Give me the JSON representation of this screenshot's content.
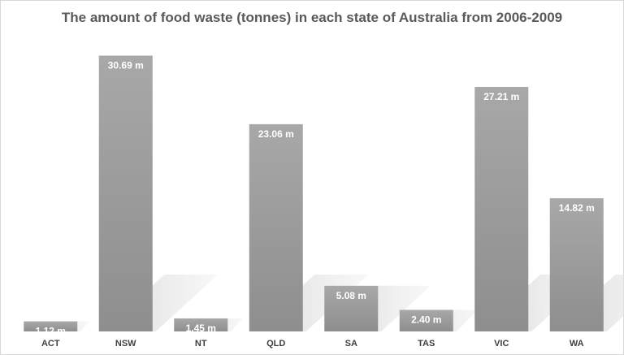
{
  "chart_data": {
    "type": "bar",
    "title": "The amount of food waste (tonnes) in each state of Australia from 2006-2009",
    "xlabel": "",
    "ylabel": "",
    "categories": [
      "ACT",
      "NSW",
      "NT",
      "QLD",
      "SA",
      "TAS",
      "VIC",
      "WA"
    ],
    "values": [
      1.12,
      30.69,
      1.45,
      23.06,
      5.08,
      2.4,
      27.21,
      14.82
    ],
    "data_labels": [
      "1.12 m",
      "30.69 m",
      "1.45 m",
      "23.06 m",
      "5.08 m",
      "2.40 m",
      "27.21 m",
      "14.82 m"
    ],
    "ylim": [
      0,
      32
    ],
    "grid": false,
    "legend": "none",
    "colors": {
      "bar_top": "#a6a6a6",
      "bar_bottom": "#8c8c8c",
      "shadow": "#e0e0e0"
    }
  }
}
